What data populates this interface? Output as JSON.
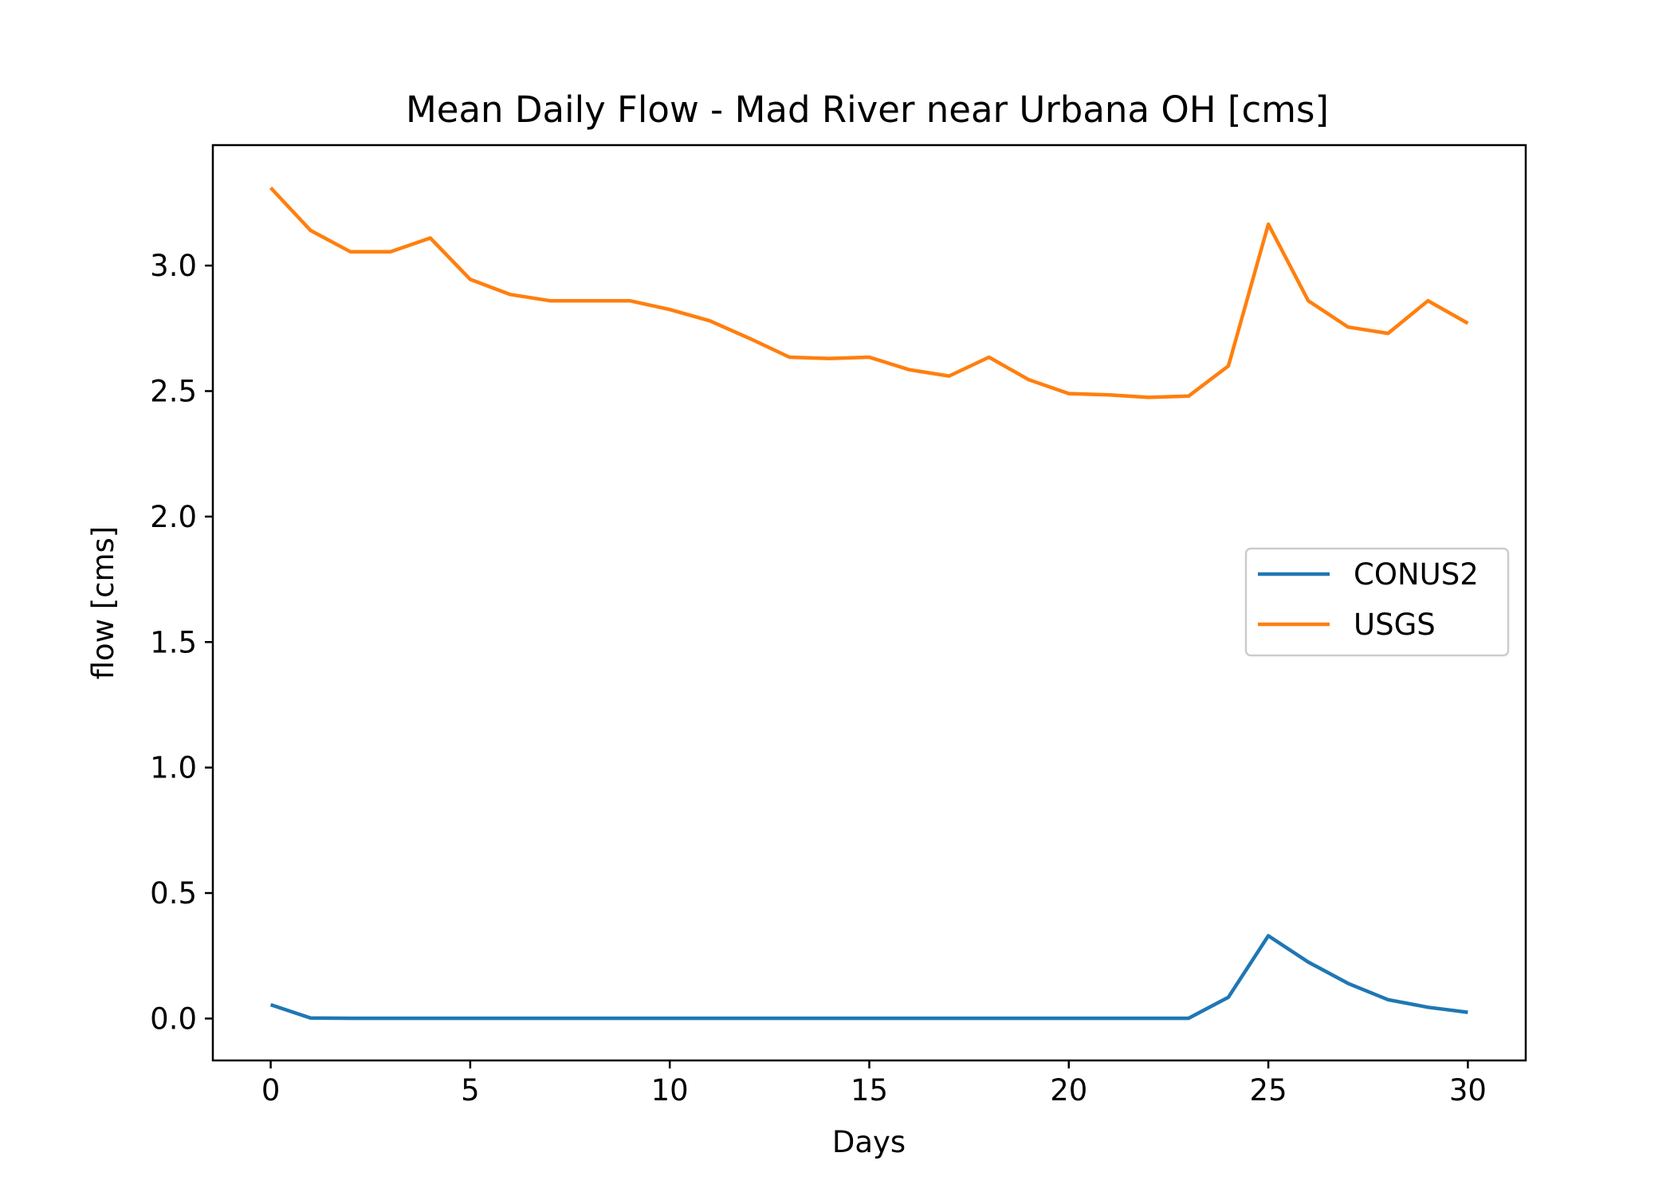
{
  "chart_data": {
    "type": "line",
    "title": "Mean Daily Flow - Mad River near Urbana OH [cms]",
    "xlabel": "Days",
    "ylabel": "flow [cms]",
    "xlim": [
      -1.45,
      31.45
    ],
    "ylim": [
      -0.167,
      3.48
    ],
    "xticks": [
      0,
      5,
      10,
      15,
      20,
      25,
      30
    ],
    "yticks": [
      0.0,
      0.5,
      1.0,
      1.5,
      2.0,
      2.5,
      3.0
    ],
    "xtick_labels": [
      "0",
      "5",
      "10",
      "15",
      "20",
      "25",
      "30"
    ],
    "ytick_labels": [
      "0.0",
      "0.5",
      "1.0",
      "1.5",
      "2.0",
      "2.5",
      "3.0"
    ],
    "grid": false,
    "legend_position": "center-right",
    "x": [
      0,
      1,
      2,
      3,
      4,
      5,
      6,
      7,
      8,
      9,
      10,
      11,
      12,
      13,
      14,
      15,
      16,
      17,
      18,
      19,
      20,
      21,
      22,
      23,
      24,
      25,
      26,
      27,
      28,
      29,
      30
    ],
    "series": [
      {
        "name": "CONUS2",
        "color": "#1f77b4",
        "values": [
          0.055,
          0.002,
          0.001,
          0.001,
          0.001,
          0.001,
          0.001,
          0.001,
          0.001,
          0.001,
          0.001,
          0.001,
          0.001,
          0.001,
          0.001,
          0.001,
          0.001,
          0.001,
          0.001,
          0.001,
          0.001,
          0.001,
          0.001,
          0.001,
          0.085,
          0.33,
          0.225,
          0.14,
          0.075,
          0.045,
          0.025
        ]
      },
      {
        "name": "USGS",
        "color": "#ff7f0e",
        "values": [
          3.31,
          3.14,
          3.055,
          3.055,
          3.11,
          2.945,
          2.885,
          2.86,
          2.86,
          2.86,
          2.825,
          2.78,
          2.71,
          2.635,
          2.63,
          2.635,
          2.585,
          2.56,
          2.635,
          2.545,
          2.49,
          2.485,
          2.475,
          2.48,
          2.6,
          3.165,
          2.86,
          2.755,
          2.73,
          2.86,
          2.77
        ]
      }
    ]
  }
}
